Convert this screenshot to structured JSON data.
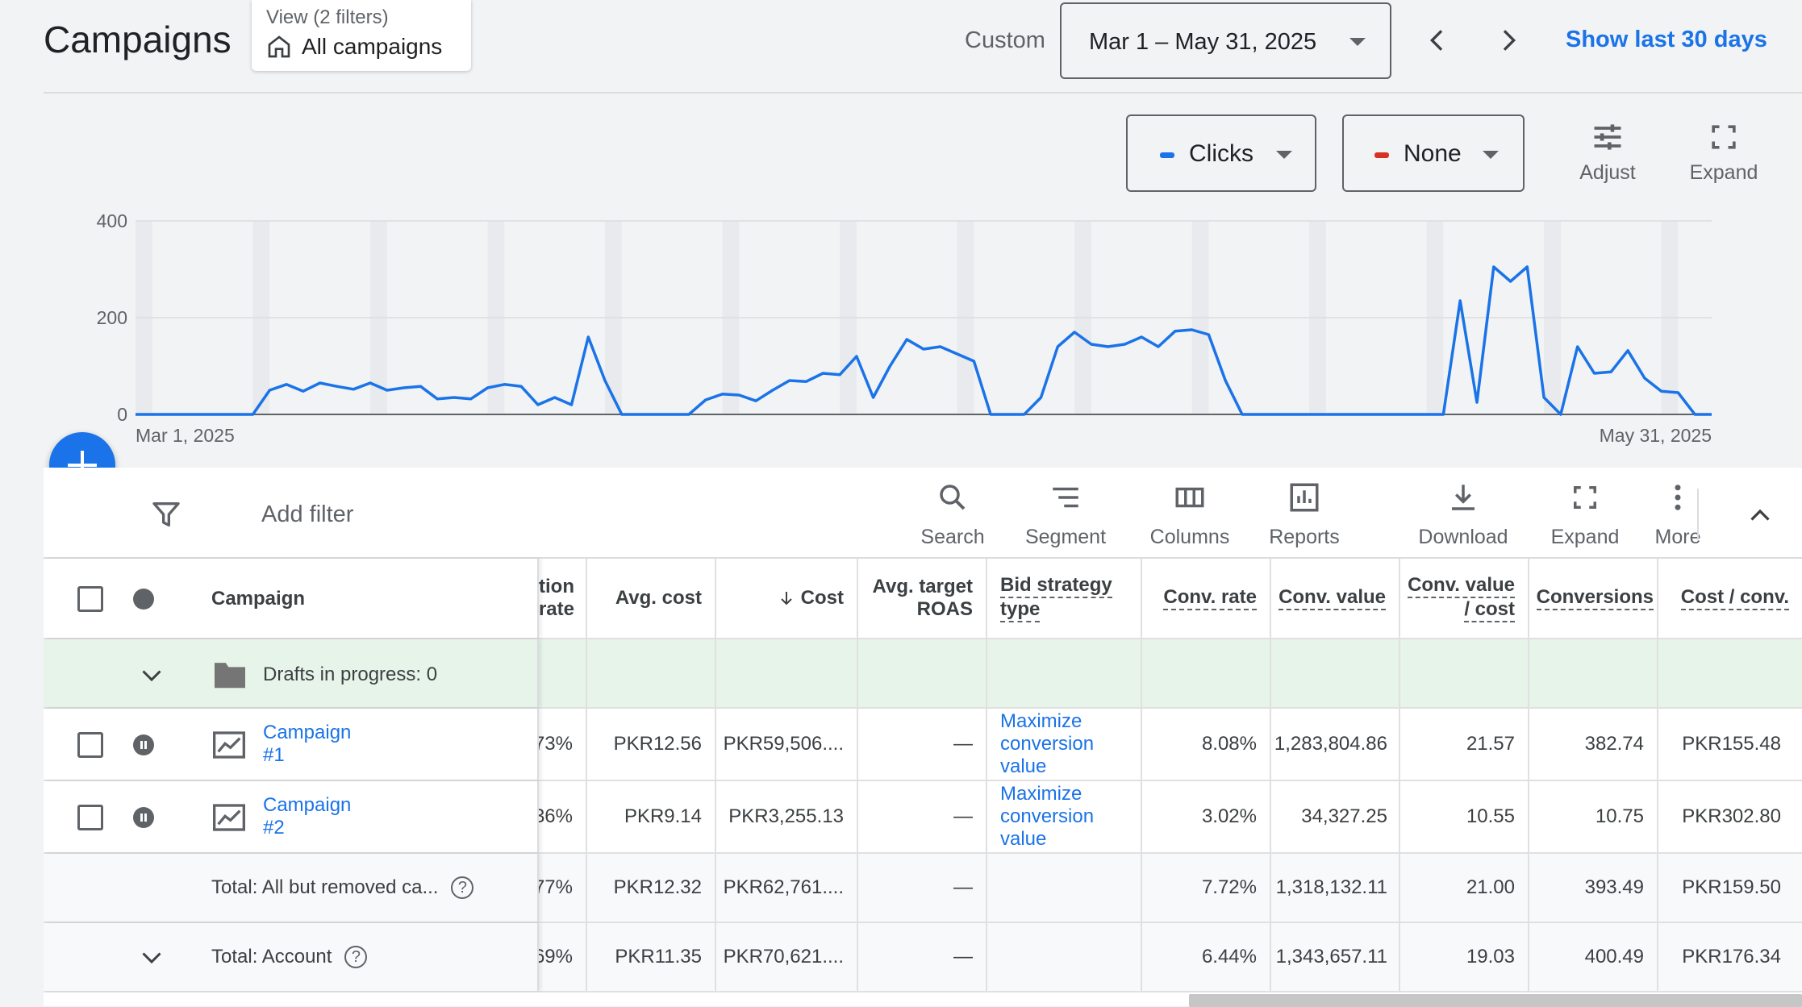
{
  "header": {
    "title": "Campaigns",
    "view_sub": "View (2 filters)",
    "view_main": "All campaigns",
    "custom_label": "Custom",
    "date_range": "Mar 1 – May 31, 2025",
    "show_last": "Show last 30 days"
  },
  "chart_controls": {
    "metric1": "Clicks",
    "metric1_color": "#1a73e8",
    "metric2": "None",
    "metric2_color": "#d93025",
    "adjust": "Adjust",
    "expand": "Expand"
  },
  "chart_data": {
    "type": "line",
    "x_start": "Mar 1, 2025",
    "x_end": "May 31, 2025",
    "y_ticks": [
      "400",
      "200",
      "0"
    ],
    "ylim": [
      0,
      400
    ],
    "grid": true,
    "series": [
      {
        "name": "Clicks",
        "color": "#1a73e8",
        "values": [
          0,
          0,
          0,
          0,
          0,
          0,
          0,
          0,
          50,
          62,
          48,
          65,
          58,
          52,
          65,
          50,
          55,
          58,
          32,
          35,
          32,
          55,
          62,
          58,
          20,
          35,
          20,
          160,
          70,
          0,
          0,
          0,
          0,
          0,
          30,
          42,
          40,
          28,
          50,
          70,
          68,
          85,
          82,
          120,
          35,
          100,
          155,
          135,
          140,
          125,
          110,
          0,
          0,
          0,
          35,
          140,
          170,
          145,
          140,
          145,
          160,
          140,
          172,
          175,
          165,
          70,
          0,
          0,
          0,
          0,
          0,
          0,
          0,
          0,
          0,
          0,
          0,
          0,
          0,
          235,
          25,
          305,
          275,
          305,
          35,
          0,
          140,
          85,
          88,
          132,
          75,
          48,
          45,
          0,
          0
        ]
      }
    ]
  },
  "toolbar": {
    "add_filter": "Add filter",
    "search": "Search",
    "segment": "Segment",
    "columns": "Columns",
    "reports": "Reports",
    "download": "Download",
    "expand": "Expand",
    "more": "More"
  },
  "table": {
    "campaign_header": "Campaign",
    "headers": {
      "conv_rate_partial_1": "tion",
      "conv_rate_partial_2": "rate",
      "avg_cost": "Avg. cost",
      "cost": "Cost",
      "avg_target_roas_1": "Avg. target",
      "avg_target_roas_2": "ROAS",
      "bid_strategy_1": "Bid strategy",
      "bid_strategy_2": "type",
      "conv_rate": "Conv. rate",
      "conv_value": "Conv. value",
      "conv_value_cost_1": "Conv. value",
      "conv_value_cost_2": "/ cost",
      "conversions": "Conversions",
      "cost_conv": "Cost / conv."
    },
    "drafts": "Drafts in progress: 0",
    "rows": [
      {
        "name_1": "Campaign",
        "name_2": "#1",
        "rate": "73%",
        "avg_cost": "PKR12.56",
        "cost": "PKR59,506....",
        "roas": "—",
        "bid_1": "Maximize",
        "bid_2": "conversion",
        "bid_3": "value",
        "conv_rate": "8.08%",
        "conv_value": "1,283,804.86",
        "conv_value_cost": "21.57",
        "conversions": "382.74",
        "cost_conv": "PKR155.48"
      },
      {
        "name_1": "Campaign",
        "name_2": "#2",
        "rate": "36%",
        "avg_cost": "PKR9.14",
        "cost": "PKR3,255.13",
        "roas": "—",
        "bid_1": "Maximize",
        "bid_2": "conversion",
        "bid_3": "value",
        "conv_rate": "3.02%",
        "conv_value": "34,327.25",
        "conv_value_cost": "10.55",
        "conversions": "10.75",
        "cost_conv": "PKR302.80"
      }
    ],
    "total_removed": {
      "label": "Total: All but removed ca...",
      "rate": "77%",
      "avg_cost": "PKR12.32",
      "cost": "PKR62,761....",
      "roas": "—",
      "conv_rate": "7.72%",
      "conv_value": "1,318,132.11",
      "conv_value_cost": "21.00",
      "conversions": "393.49",
      "cost_conv": "PKR159.50"
    },
    "total_account": {
      "label": "Total: Account",
      "rate": "69%",
      "avg_cost": "PKR11.35",
      "cost": "PKR70,621....",
      "roas": "—",
      "conv_rate": "6.44%",
      "conv_value": "1,343,657.11",
      "conv_value_cost": "19.03",
      "conversions": "400.49",
      "cost_conv": "PKR176.34"
    }
  }
}
